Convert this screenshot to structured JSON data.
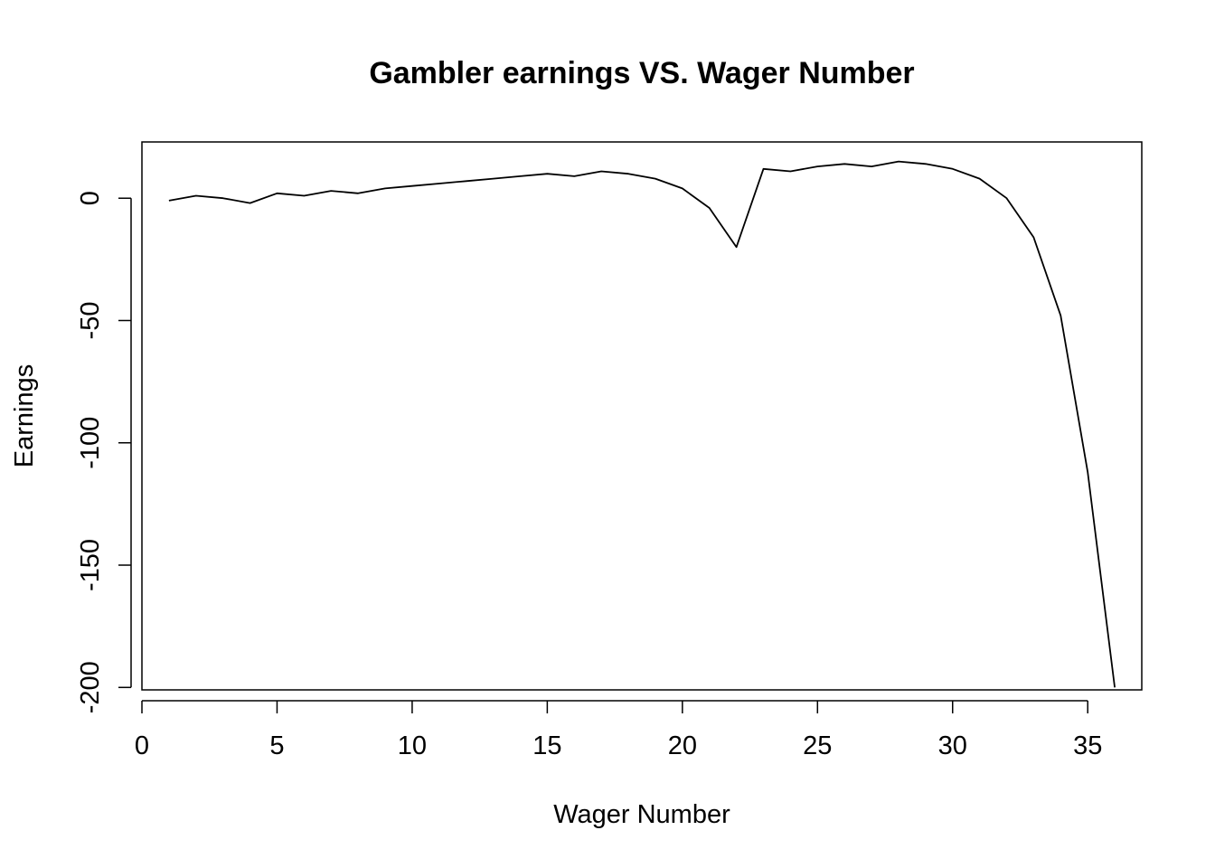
{
  "chart_data": {
    "type": "line",
    "title": "Gambler earnings VS. Wager Number",
    "xlabel": "Wager Number",
    "ylabel": "Earnings",
    "xlim": [
      0,
      37
    ],
    "ylim": [
      -201,
      23
    ],
    "x_ticks": [
      0,
      5,
      10,
      15,
      20,
      25,
      30,
      35
    ],
    "y_ticks": [
      0,
      -50,
      -100,
      -150,
      -200
    ],
    "grid": false,
    "legend": "none",
    "line_color": "#000000",
    "series": [
      {
        "x": [
          1,
          2,
          3,
          4,
          5,
          6,
          7,
          8,
          9,
          10,
          11,
          12,
          13,
          14,
          15,
          16,
          17,
          18,
          19,
          20,
          21,
          22,
          23,
          24,
          25,
          26,
          27,
          28,
          29,
          30,
          31,
          32,
          33,
          34,
          35,
          36
        ],
        "values": [
          -1,
          1,
          0,
          -2,
          2,
          1,
          3,
          2,
          4,
          5,
          6,
          7,
          8,
          9,
          10,
          9,
          11,
          10,
          8,
          4,
          -4,
          -20,
          12,
          11,
          13,
          14,
          13,
          15,
          14,
          12,
          8,
          0,
          -16,
          -48,
          -112,
          -200
        ]
      }
    ]
  }
}
